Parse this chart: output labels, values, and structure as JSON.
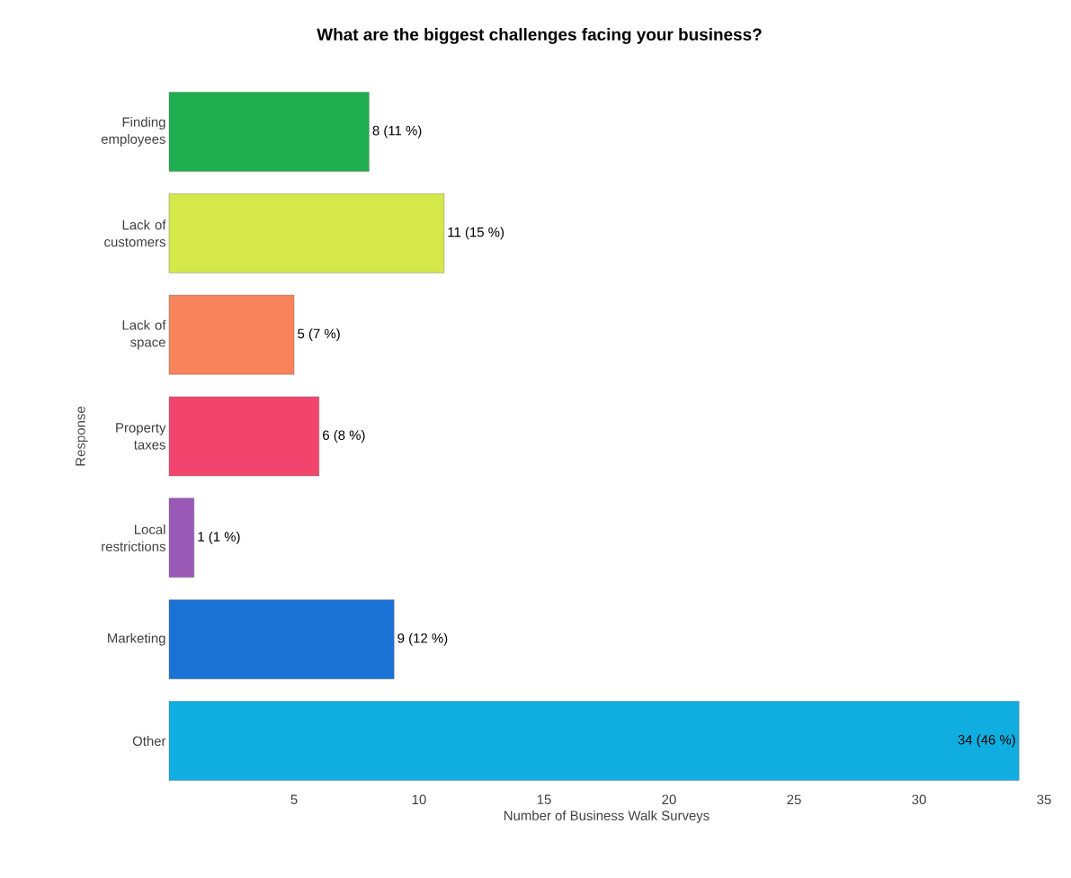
{
  "chart_data": {
    "type": "bar",
    "orientation": "horizontal",
    "title": "What are the biggest challenges facing your business?",
    "xlabel": "Number of Business Walk Surveys",
    "ylabel": "Response",
    "categories": [
      "Finding employees",
      "Lack of customers",
      "Lack of space",
      "Property taxes",
      "Local restrictions",
      "Marketing",
      "Other"
    ],
    "values": [
      8,
      11,
      5,
      6,
      1,
      9,
      34
    ],
    "colors": [
      "#1fae4f",
      "#d4e84a",
      "#f7845a",
      "#f2456e",
      "#9b59b6",
      "#1a73d4",
      "#10aee0"
    ],
    "value_labels": [
      "8 (11 %)",
      "11 (15 %)",
      "5 (7 %)",
      "6 (8 %)",
      "1 (1 %)",
      "9 (12 %)",
      "34 (46 %)"
    ],
    "xlim": [
      0,
      35
    ],
    "xticks": [
      5,
      10,
      15,
      20,
      25,
      30,
      35
    ],
    "grid": false
  }
}
